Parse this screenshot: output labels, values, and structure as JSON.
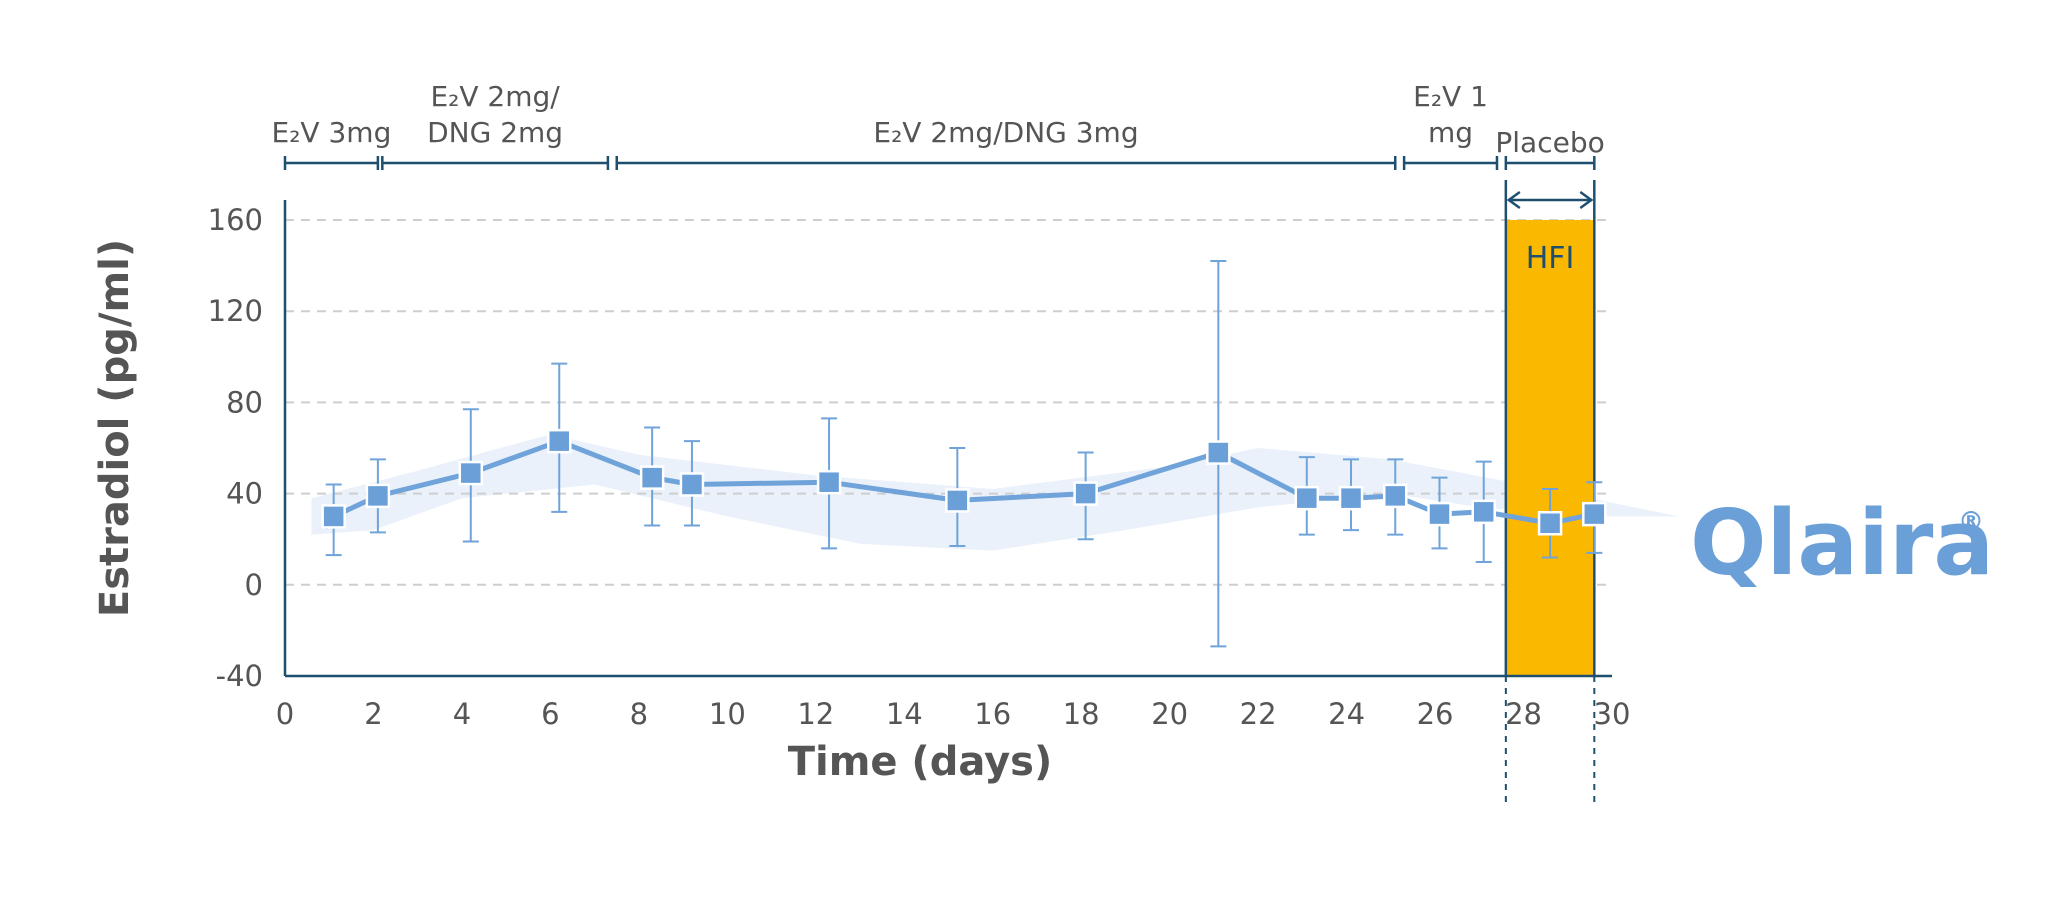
{
  "colors": {
    "axis": "#1f4f6e",
    "series": "#6fa3d9",
    "marker_fill": "#6a9fd8",
    "band": "#e8f0fa",
    "hfi_fill": "#fbb800",
    "grid": "#cfcfcf",
    "text": "#555555",
    "brand": "#6a9fd8"
  },
  "brand": {
    "name": "Qlaira",
    "mark": "®"
  },
  "chart_data": {
    "type": "line",
    "title": "",
    "xlabel": "Time (days)",
    "ylabel": "Estradiol (pg/ml)",
    "xlim": [
      0,
      30
    ],
    "ylim": [
      -40,
      160
    ],
    "x_ticks": [
      0,
      2,
      4,
      6,
      8,
      10,
      12,
      14,
      16,
      18,
      20,
      22,
      24,
      26,
      28,
      30
    ],
    "y_ticks": [
      -40,
      0,
      40,
      80,
      120,
      160
    ],
    "grid": "horizontal dashed at 0, 40, 80, 120, 160",
    "series": [
      {
        "name": "Estradiol",
        "x": [
          1.1,
          2.1,
          4.2,
          6.2,
          8.3,
          9.2,
          12.3,
          15.2,
          18.1,
          21.1,
          23.1,
          24.1,
          25.1,
          26.1,
          27.1,
          28.6,
          29.6
        ],
        "y": [
          30,
          39,
          49,
          63,
          47,
          44,
          45,
          37,
          40,
          58,
          38,
          38,
          39,
          31,
          32,
          27,
          31
        ],
        "err_low": [
          13,
          23,
          19,
          32,
          26,
          26,
          16,
          17,
          20,
          -27,
          22,
          24,
          22,
          16,
          10,
          12,
          14
        ],
        "err_high": [
          44,
          55,
          77,
          97,
          69,
          63,
          73,
          60,
          58,
          142,
          56,
          55,
          55,
          47,
          54,
          42,
          45
        ]
      }
    ],
    "phases": [
      {
        "label": "E₂V 3mg",
        "start": 0,
        "end": 2.1
      },
      {
        "label": "E₂V 2mg/",
        "label2": "DNG 2mg",
        "start": 2.2,
        "end": 7.3
      },
      {
        "label": "E₂V 2mg/DNG 3mg",
        "start": 7.5,
        "end": 25.1
      },
      {
        "label": "E₂V 1",
        "label2": "mg",
        "start": 25.3,
        "end": 27.4
      },
      {
        "label": "Placebo",
        "start": 27.6,
        "end": 29.6
      }
    ],
    "hfi": {
      "label": "HFI",
      "start": 27.6,
      "end": 29.6
    }
  }
}
